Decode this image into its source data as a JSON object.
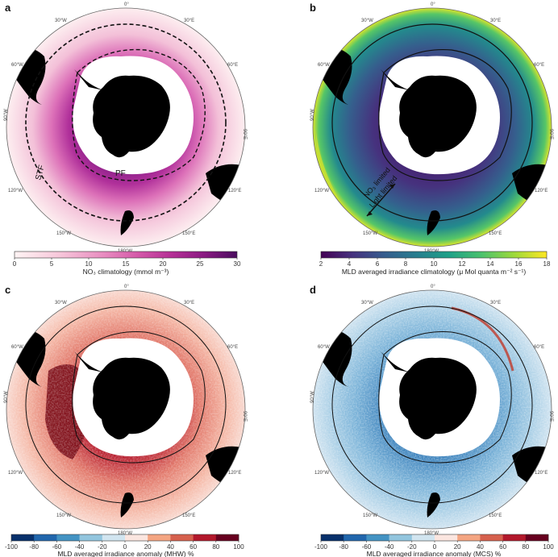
{
  "panels": [
    {
      "letter": "a",
      "cbar_label": "NO₃ climatology (mmol m⁻³)",
      "cbar_ticks": [
        "0",
        "5",
        "10",
        "15",
        "20",
        "25",
        "30"
      ],
      "cbar_colors": [
        "#fff4f4",
        "#f7c7da",
        "#e88cc0",
        "#d55aa9",
        "#b63196",
        "#8a1a82",
        "#4a0d5e"
      ],
      "annotations": [
        "STF",
        "PF"
      ]
    },
    {
      "letter": "b",
      "cbar_label": "MLD averaged irradiance climatology (μ Mol quanta m⁻² s⁻¹)",
      "cbar_ticks": [
        "2",
        "4",
        "6",
        "8",
        "10",
        "12",
        "14",
        "16",
        "18"
      ],
      "cbar_colors": [
        "#440154",
        "#46327e",
        "#365c8d",
        "#277f8e",
        "#1fa187",
        "#4ac16d",
        "#a0da39",
        "#fde725"
      ],
      "annotations": [
        "Light limited",
        "NO₃ limited"
      ]
    },
    {
      "letter": "c",
      "cbar_label": "MLD averaged irradiance anomaly (MHW) %",
      "cbar_ticks": [
        "-100",
        "-80",
        "-60",
        "-40",
        "-20",
        "0",
        "20",
        "40",
        "60",
        "80",
        "100"
      ],
      "cbar_colors": [
        "#08306b",
        "#2166ac",
        "#4393c3",
        "#92c5de",
        "#d1e5f0",
        "#fbe6e0",
        "#f4a582",
        "#d6604d",
        "#b2182b",
        "#67001f"
      ],
      "annotations": []
    },
    {
      "letter": "d",
      "cbar_label": "MLD averaged irradiance anomaly (MCS) %",
      "cbar_ticks": [
        "-100",
        "-80",
        "-60",
        "-40",
        "-20",
        "0",
        "20",
        "40",
        "60",
        "80",
        "100"
      ],
      "cbar_colors": [
        "#08306b",
        "#2166ac",
        "#4393c3",
        "#92c5de",
        "#d1e5f0",
        "#fbe6e0",
        "#f4a582",
        "#d6604d",
        "#b2182b",
        "#67001f"
      ],
      "annotations": []
    }
  ],
  "meridian_labels": {
    "top": "0°",
    "upper_right": "30°E",
    "right_upper": "60°E",
    "right": "90°E",
    "right_lower": "120°E",
    "lower_right": "150°E",
    "bottom": "180°W",
    "lower_left": "150°W",
    "left_lower": "120°W",
    "left": "90°W",
    "left_upper": "60°W",
    "upper_left": "30°W"
  },
  "colors": {
    "land": "#000000",
    "ice": "#ffffff",
    "front_line": "#111111"
  }
}
